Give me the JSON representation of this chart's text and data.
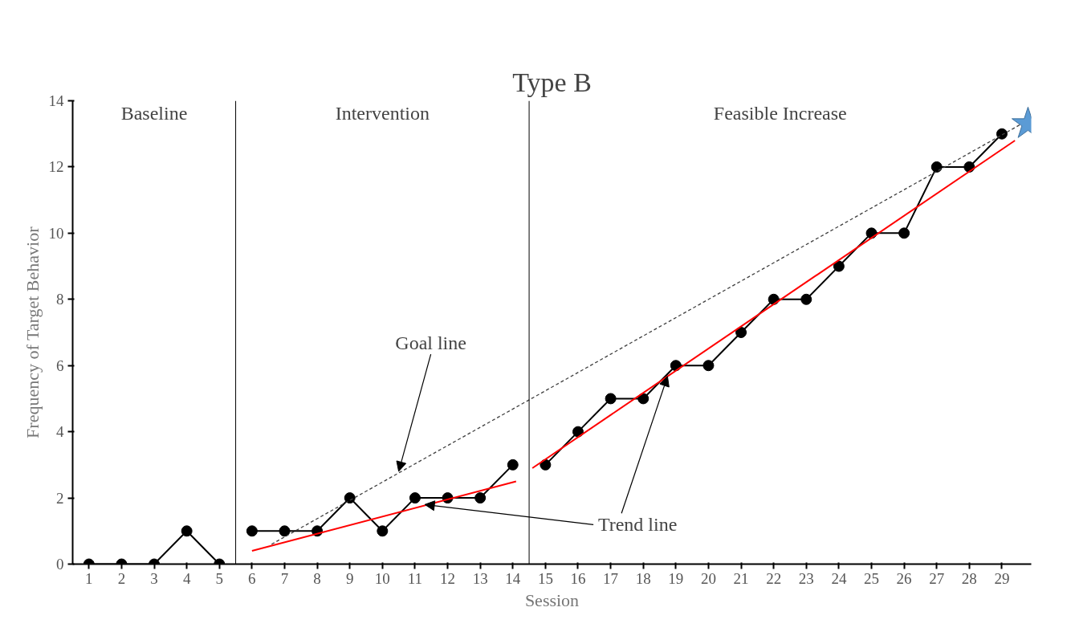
{
  "chart_data": {
    "type": "line",
    "title": "Type B",
    "xlabel": "Session",
    "ylabel": "Frequency of Target Behavior",
    "xlim": [
      0.5,
      29.9
    ],
    "xticks": [
      1,
      2,
      3,
      4,
      5,
      6,
      7,
      8,
      9,
      10,
      11,
      12,
      13,
      14,
      15,
      16,
      17,
      18,
      19,
      20,
      21,
      22,
      23,
      24,
      25,
      26,
      27,
      28,
      29
    ],
    "ylim": [
      0,
      14
    ],
    "yticks": [
      0,
      2,
      4,
      6,
      8,
      10,
      12,
      14
    ],
    "grid": false,
    "marker": "circle",
    "line_style": "solid",
    "series": [
      {
        "color": "#000000",
        "x": [
          1,
          2,
          3,
          4,
          5
        ],
        "values": [
          0,
          0,
          0,
          1,
          0
        ]
      },
      {
        "color": "#000000",
        "x": [
          6,
          7,
          8,
          9,
          10,
          11,
          12,
          13,
          14
        ],
        "values": [
          1,
          1,
          1,
          2,
          1,
          2,
          2,
          2,
          3
        ]
      },
      {
        "color": "#000000",
        "x": [
          15,
          16,
          17,
          18,
          19,
          20,
          21,
          22,
          23,
          24,
          25,
          26,
          27,
          28,
          29
        ],
        "values": [
          3,
          4,
          5,
          5,
          6,
          6,
          7,
          8,
          8,
          9,
          10,
          10,
          12,
          12,
          13
        ]
      },
      {
        "color": "#ff0000",
        "marker": "none",
        "x": [
          6.0,
          14.1
        ],
        "values": [
          0.4,
          2.5
        ]
      },
      {
        "color": "#ff0000",
        "marker": "none",
        "x": [
          14.6,
          29.4
        ],
        "values": [
          2.9,
          12.8
        ]
      },
      {
        "color": "#404040",
        "marker": "none",
        "line_style": "dashed",
        "x": [
          6.6,
          29.6
        ],
        "values": [
          0.6,
          13.3
        ]
      },
      {
        "type": "scatter",
        "marker": "star",
        "color": "#5b9bd5",
        "x": [
          29.8
        ],
        "values": [
          13.3
        ]
      }
    ],
    "ref_lines": [
      {
        "axis": "x",
        "value": 5.5
      },
      {
        "axis": "x",
        "value": 14.5
      }
    ],
    "annotations": [
      "Baseline",
      "Intervention",
      "Feasible Increase",
      {
        "text": "Goal line",
        "x": 10.5,
        "y": 2.8
      },
      {
        "text": "Trend line",
        "x": 11.3,
        "y": 1.8
      }
    ]
  }
}
